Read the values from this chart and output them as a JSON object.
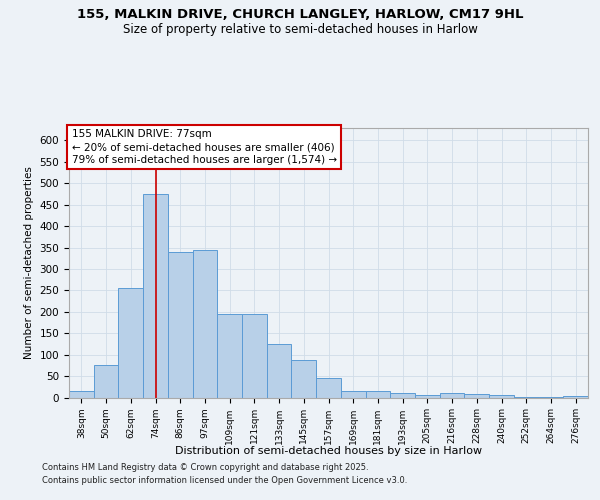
{
  "title_line1": "155, MALKIN DRIVE, CHURCH LANGLEY, HARLOW, CM17 9HL",
  "title_line2": "Size of property relative to semi-detached houses in Harlow",
  "xlabel": "Distribution of semi-detached houses by size in Harlow",
  "ylabel": "Number of semi-detached properties",
  "categories": [
    "38sqm",
    "50sqm",
    "62sqm",
    "74sqm",
    "86sqm",
    "97sqm",
    "109sqm",
    "121sqm",
    "133sqm",
    "145sqm",
    "157sqm",
    "169sqm",
    "181sqm",
    "193sqm",
    "205sqm",
    "216sqm",
    "228sqm",
    "240sqm",
    "252sqm",
    "264sqm",
    "276sqm"
  ],
  "values": [
    15,
    75,
    255,
    475,
    340,
    345,
    195,
    195,
    125,
    87,
    45,
    15,
    15,
    10,
    6,
    10,
    8,
    5,
    2,
    1,
    4
  ],
  "bar_color": "#b8d0e8",
  "bar_edge_color": "#5b9bd5",
  "grid_color": "#d0dce8",
  "vline_x": 3,
  "vline_color": "#cc0000",
  "annotation_text": "155 MALKIN DRIVE: 77sqm\n← 20% of semi-detached houses are smaller (406)\n79% of semi-detached houses are larger (1,574) →",
  "annotation_box_color": "#cc0000",
  "footer_line1": "Contains HM Land Registry data © Crown copyright and database right 2025.",
  "footer_line2": "Contains public sector information licensed under the Open Government Licence v3.0.",
  "ylim": [
    0,
    630
  ],
  "yticks": [
    0,
    50,
    100,
    150,
    200,
    250,
    300,
    350,
    400,
    450,
    500,
    550,
    600
  ],
  "background_color": "#edf2f7",
  "plot_bg_color": "#edf2f7"
}
